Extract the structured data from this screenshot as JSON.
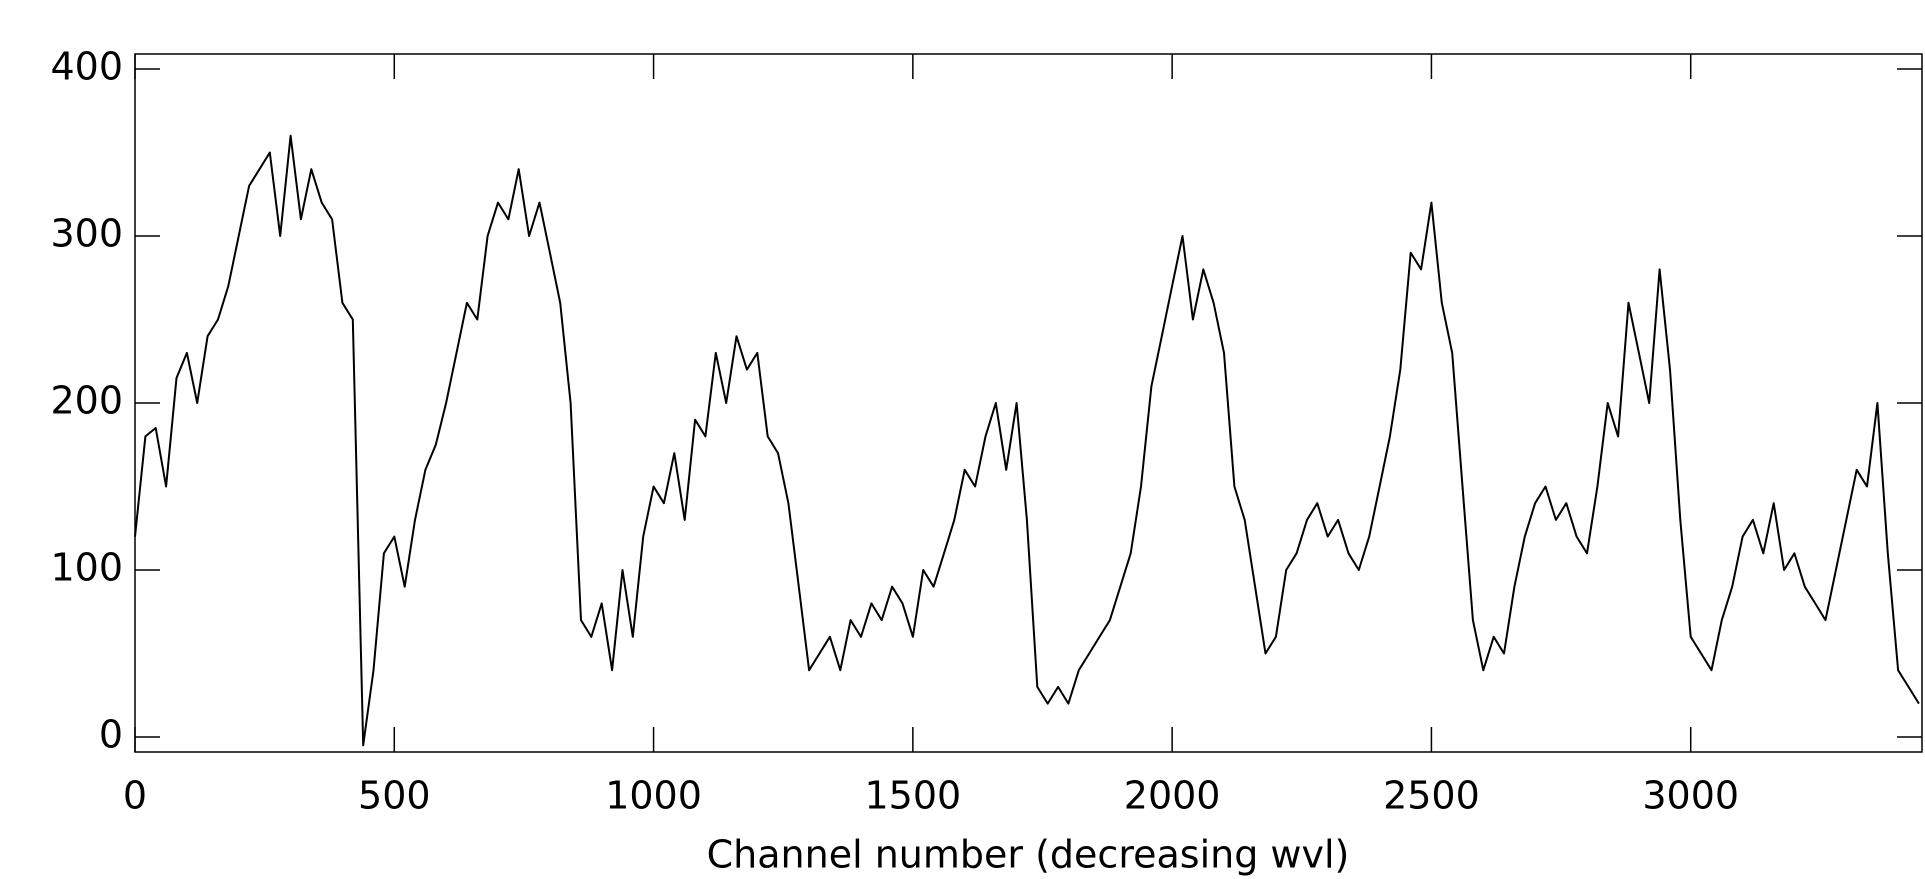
{
  "chart_data": {
    "type": "line",
    "xlabel": "Channel number (decreasing wvl)",
    "x": [
      0,
      20,
      40,
      60,
      80,
      100,
      120,
      140,
      160,
      180,
      200,
      220,
      240,
      260,
      280,
      300,
      320,
      340,
      360,
      380,
      400,
      420,
      440,
      460,
      480,
      500,
      520,
      540,
      560,
      580,
      600,
      620,
      640,
      660,
      680,
      700,
      720,
      740,
      760,
      780,
      800,
      820,
      840,
      860,
      880,
      900,
      920,
      940,
      960,
      980,
      1000,
      1020,
      1040,
      1060,
      1080,
      1100,
      1120,
      1140,
      1160,
      1180,
      1200,
      1220,
      1240,
      1260,
      1280,
      1300,
      1320,
      1340,
      1360,
      1380,
      1400,
      1420,
      1440,
      1460,
      1480,
      1500,
      1520,
      1540,
      1560,
      1580,
      1600,
      1620,
      1640,
      1660,
      1680,
      1700,
      1720,
      1740,
      1760,
      1780,
      1800,
      1820,
      1840,
      1860,
      1880,
      1900,
      1920,
      1940,
      1960,
      1980,
      2000,
      2020,
      2040,
      2060,
      2080,
      2100,
      2120,
      2140,
      2160,
      2180,
      2200,
      2220,
      2240,
      2260,
      2280,
      2300,
      2320,
      2340,
      2360,
      2380,
      2400,
      2420,
      2440,
      2460,
      2480,
      2500,
      2520,
      2540,
      2560,
      2580,
      2600,
      2620,
      2640,
      2660,
      2680,
      2700,
      2720,
      2740,
      2760,
      2780,
      2800,
      2820,
      2840,
      2860,
      2880,
      2900,
      2920,
      2940,
      2960,
      2980,
      3000,
      3020,
      3040,
      3060,
      3080,
      3100,
      3120,
      3140,
      3160,
      3180,
      3200,
      3220,
      3240,
      3260,
      3280,
      3300,
      3320,
      3340,
      3360,
      3380,
      3400,
      3420,
      3440
    ],
    "series": [
      {
        "color": "#000000",
        "values": [
          120,
          180,
          185,
          150,
          215,
          230,
          200,
          240,
          250,
          270,
          300,
          330,
          340,
          350,
          300,
          360,
          310,
          340,
          320,
          310,
          260,
          250,
          -5,
          40,
          110,
          120,
          90,
          130,
          160,
          175,
          200,
          230,
          260,
          250,
          300,
          320,
          310,
          340,
          300,
          320,
          290,
          260,
          200,
          70,
          60,
          80,
          40,
          100,
          60,
          120,
          150,
          140,
          170,
          130,
          190,
          180,
          230,
          200,
          240,
          220,
          230,
          180,
          170,
          140,
          90,
          40,
          50,
          60,
          40,
          70,
          60,
          80,
          70,
          90,
          80,
          60,
          100,
          90,
          110,
          130,
          160,
          150,
          180,
          200,
          160,
          200,
          130,
          30,
          20,
          30,
          20,
          40,
          50,
          60,
          70,
          90,
          110,
          150,
          210,
          240,
          270,
          300,
          250,
          280,
          260,
          230,
          150,
          130,
          90,
          50,
          60,
          100,
          110,
          130,
          140,
          120,
          130,
          110,
          100,
          120,
          150,
          180,
          220,
          290,
          280,
          320,
          260,
          230,
          150,
          70,
          40,
          60,
          50,
          90,
          120,
          140,
          150,
          130,
          140,
          120,
          110,
          150,
          200,
          180,
          260,
          230,
          200,
          280,
          220,
          130,
          60,
          50,
          40,
          70,
          90,
          120,
          130,
          110,
          140,
          100,
          110,
          90,
          80,
          70,
          100,
          130,
          160,
          150,
          200,
          110,
          40,
          30,
          20
        ]
      }
    ],
    "xlim": [
      0,
      3446
    ],
    "ylim": [
      -9,
      409
    ],
    "xticks": [
      0,
      500,
      1000,
      1500,
      2000,
      2500,
      3000
    ],
    "yticks": [
      0,
      100,
      200,
      300,
      400
    ]
  }
}
